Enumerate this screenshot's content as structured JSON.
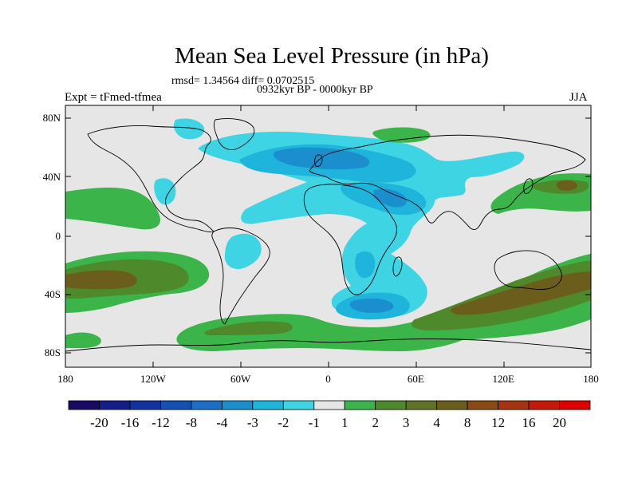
{
  "title": "Mean Sea Level Pressure (in hPa)",
  "stats": "rmsd= 1.34564 diff= 0.0702515",
  "period": "0932kyr BP - 0000kyr BP",
  "experiment": "Expt = tFmed-tfmea",
  "season": "JJA",
  "colors": {
    "background": "#e6e6e6",
    "neg1": "#3fd4e4",
    "neg2": "#1fb4dc",
    "neg3": "#1b8fce",
    "pos1": "#3bb54a",
    "pos2": "#4e8a2c",
    "pos3": "#6b5d1c",
    "coast": "#000000"
  },
  "chart_data": {
    "type": "map",
    "title": "Mean Sea Level Pressure (in hPa)",
    "lat_ticks": [
      "80N",
      "40N",
      "0",
      "40S",
      "80S"
    ],
    "lon_ticks": [
      "180",
      "120W",
      "60W",
      "0",
      "60E",
      "120E",
      "180"
    ],
    "lon_range": [
      -180,
      180
    ],
    "lat_range": [
      -90,
      90
    ],
    "colorbar": {
      "labels": [
        "-20",
        "-16",
        "-12",
        "-8",
        "-4",
        "-3",
        "-2",
        "-1",
        "1",
        "2",
        "3",
        "4",
        "8",
        "12",
        "16",
        "20"
      ],
      "colors": [
        "#1a0a66",
        "#141e8a",
        "#1232a0",
        "#1450b4",
        "#1b6fc4",
        "#1b8fce",
        "#1fb4dc",
        "#3fd4e4",
        "#e6e6e6",
        "#3bb54a",
        "#4e8a2c",
        "#5e7326",
        "#6b5d1c",
        "#8a4a14",
        "#a6320e",
        "#c41a08",
        "#e00000"
      ]
    }
  }
}
